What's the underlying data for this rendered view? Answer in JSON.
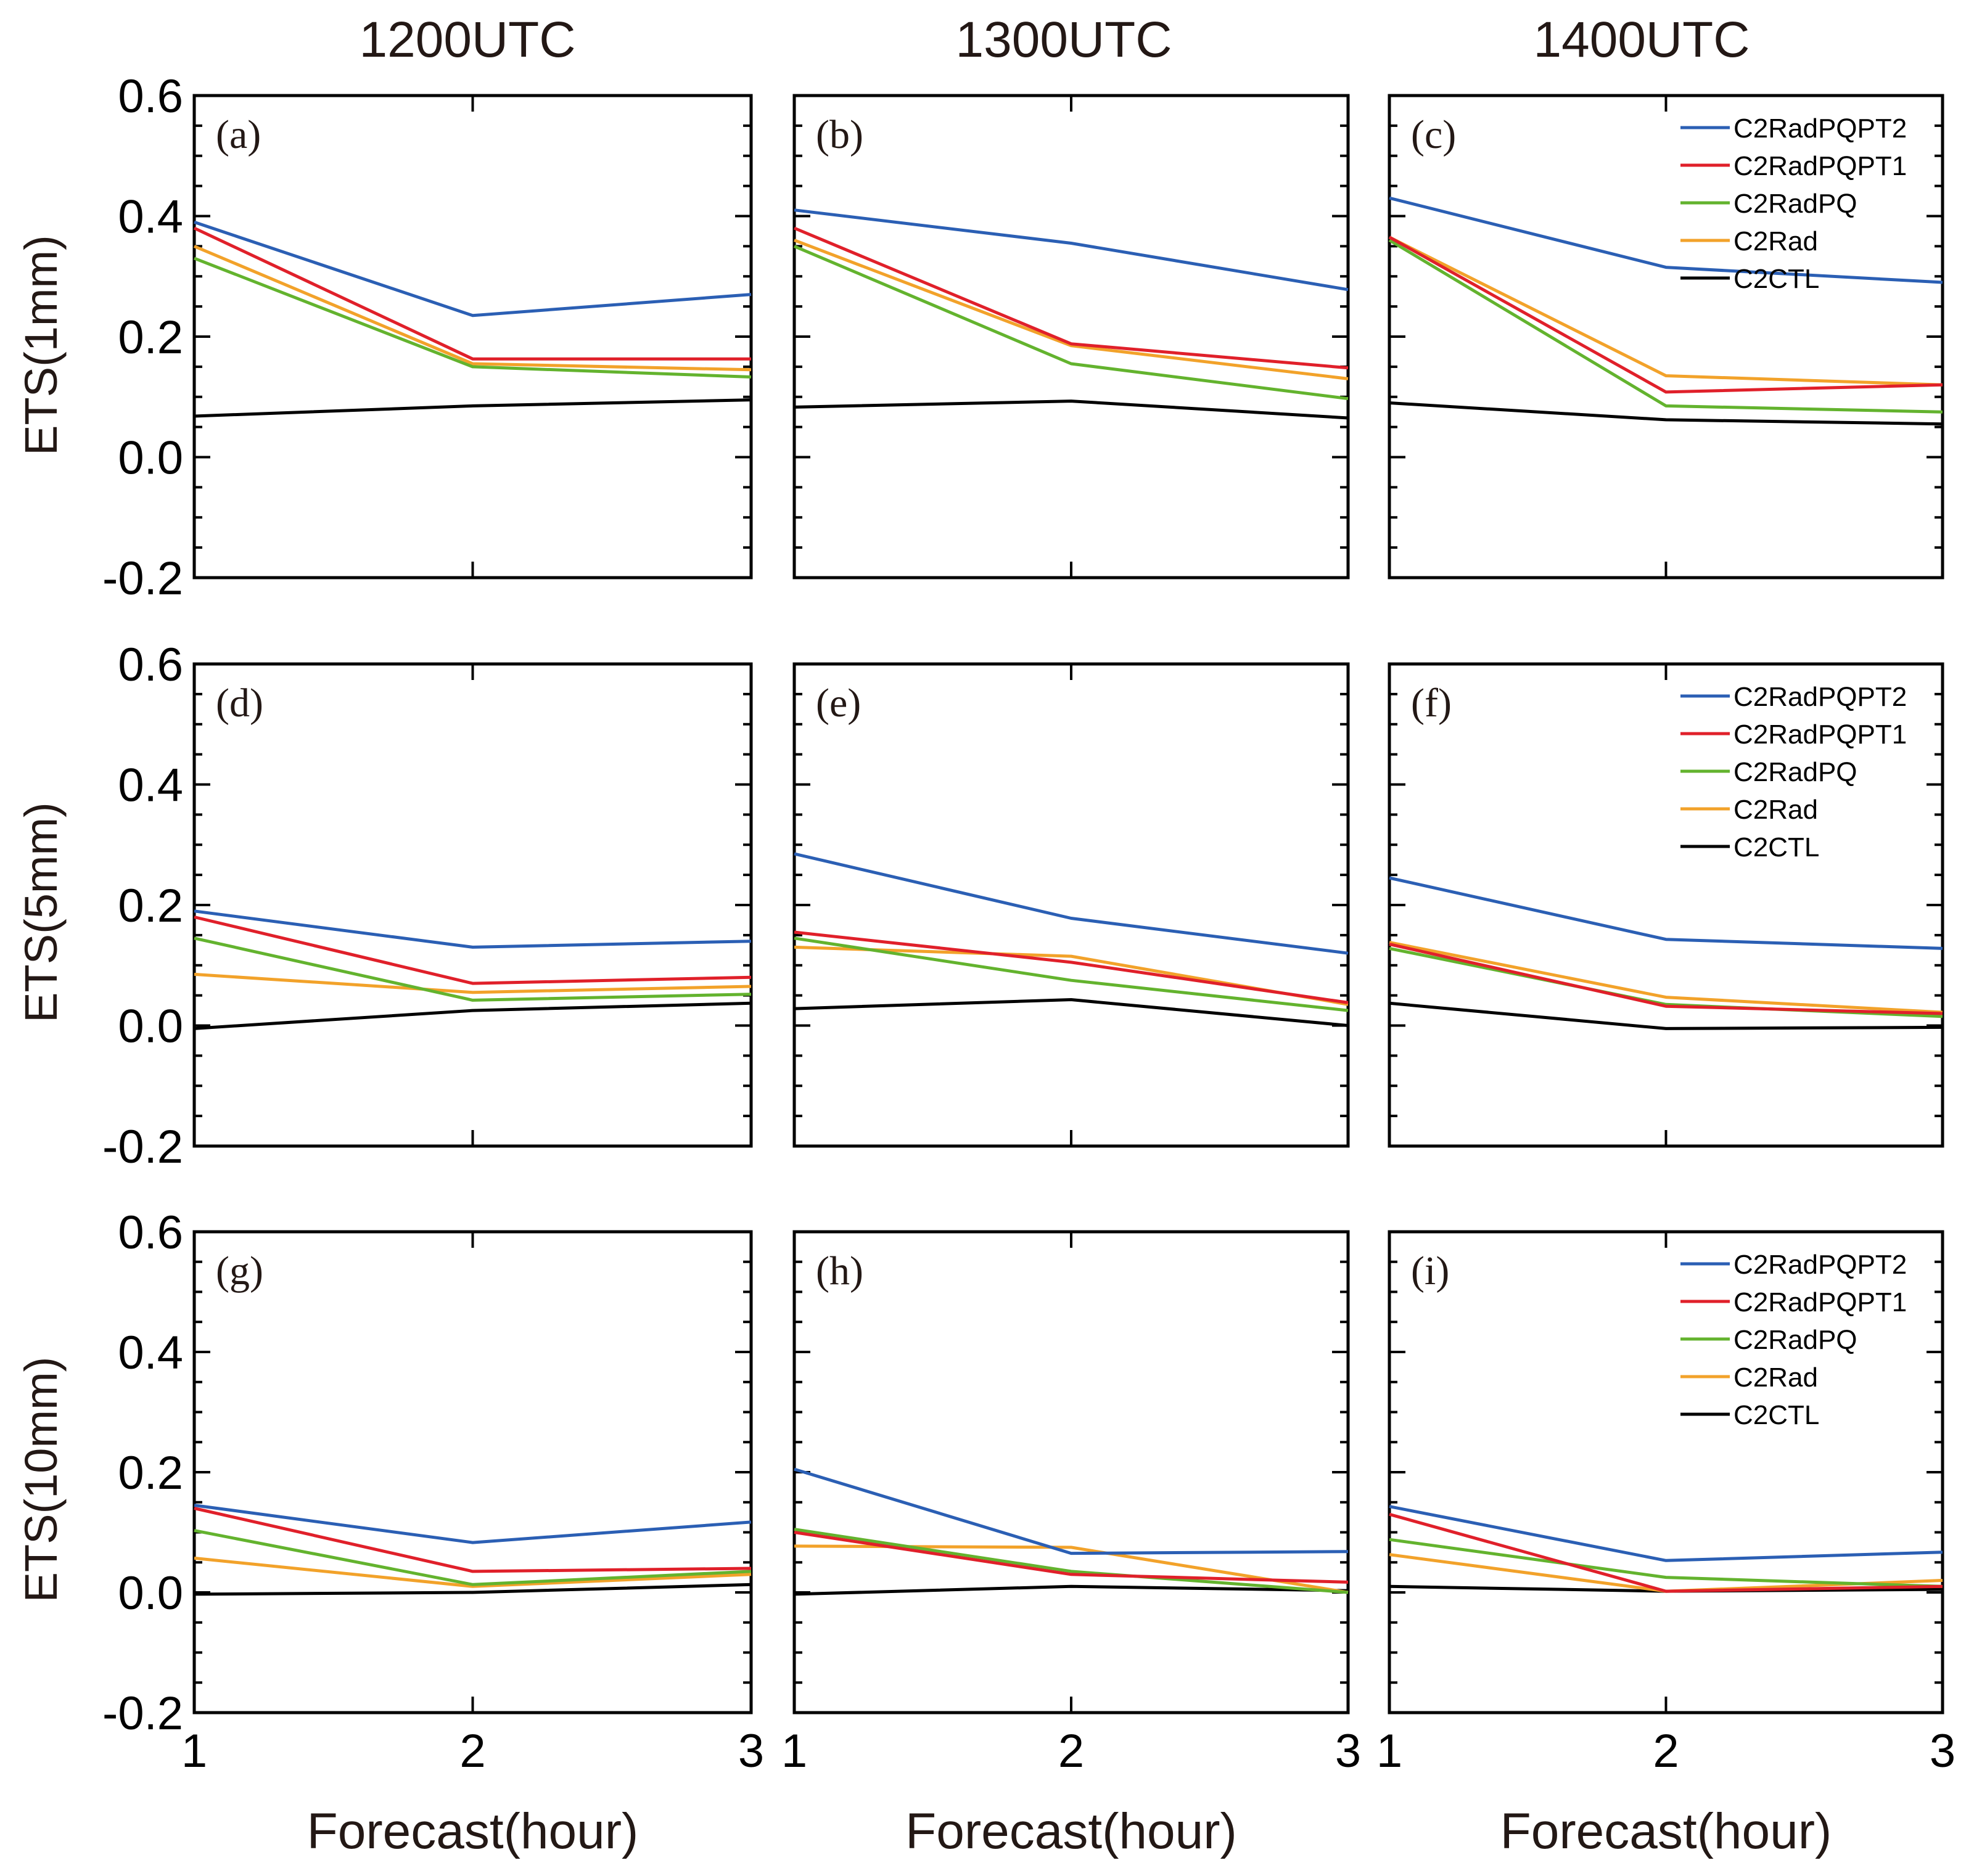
{
  "colors": {
    "C2RadPQPT2": "#2b5fb4",
    "C2RadPQPT1": "#e0202a",
    "C2RadPQ": "#63b32e",
    "C2Rad": "#f2a22a",
    "C2CTL": "#000000"
  },
  "column_titles": [
    "1200UTC",
    "1300UTC",
    "1400UTC"
  ],
  "row_ylabels": [
    "ETS(1mm)",
    "ETS(5mm)",
    "ETS(10mm)"
  ],
  "xlabel": "Forecast(hour)",
  "legend": [
    "C2RadPQPT2",
    "C2RadPQPT1",
    "C2RadPQ",
    "C2Rad",
    "C2CTL"
  ],
  "chart_data": [
    {
      "type": "line",
      "label": "(a)",
      "title": "1200UTC",
      "ylabel": "ETS(1mm)",
      "xlabel": "",
      "x": [
        1,
        2,
        3
      ],
      "ylim": [
        -0.2,
        0.6
      ],
      "yticks": [
        "0.6",
        "0.4",
        "0.2",
        "0.0",
        "-0.2"
      ],
      "xticks": [],
      "legend": false,
      "series": [
        {
          "name": "C2RadPQPT2",
          "values": [
            0.39,
            0.235,
            0.27
          ]
        },
        {
          "name": "C2RadPQPT1",
          "values": [
            0.38,
            0.163,
            0.163
          ]
        },
        {
          "name": "C2RadPQ",
          "values": [
            0.33,
            0.15,
            0.133
          ]
        },
        {
          "name": "C2Rad",
          "values": [
            0.35,
            0.155,
            0.145
          ]
        },
        {
          "name": "C2CTL",
          "values": [
            0.068,
            0.085,
            0.095
          ]
        }
      ]
    },
    {
      "type": "line",
      "label": "(b)",
      "title": "1300UTC",
      "ylabel": "",
      "xlabel": "",
      "x": [
        1,
        2,
        3
      ],
      "ylim": [
        -0.2,
        0.6
      ],
      "yticks": [],
      "xticks": [],
      "legend": false,
      "series": [
        {
          "name": "C2RadPQPT2",
          "values": [
            0.41,
            0.355,
            0.278
          ]
        },
        {
          "name": "C2RadPQPT1",
          "values": [
            0.38,
            0.188,
            0.148
          ]
        },
        {
          "name": "C2RadPQ",
          "values": [
            0.35,
            0.155,
            0.097
          ]
        },
        {
          "name": "C2Rad",
          "values": [
            0.36,
            0.185,
            0.13
          ]
        },
        {
          "name": "C2CTL",
          "values": [
            0.083,
            0.093,
            0.065
          ]
        }
      ]
    },
    {
      "type": "line",
      "label": "(c)",
      "title": "1400UTC",
      "ylabel": "",
      "xlabel": "",
      "x": [
        1,
        2,
        3
      ],
      "ylim": [
        -0.2,
        0.6
      ],
      "yticks": [],
      "xticks": [],
      "legend": true,
      "series": [
        {
          "name": "C2RadPQPT2",
          "values": [
            0.43,
            0.315,
            0.29
          ]
        },
        {
          "name": "C2RadPQPT1",
          "values": [
            0.365,
            0.108,
            0.12
          ]
        },
        {
          "name": "C2RadPQ",
          "values": [
            0.36,
            0.085,
            0.075
          ]
        },
        {
          "name": "C2Rad",
          "values": [
            0.365,
            0.135,
            0.12
          ]
        },
        {
          "name": "C2CTL",
          "values": [
            0.09,
            0.062,
            0.055
          ]
        }
      ]
    },
    {
      "type": "line",
      "label": "(d)",
      "title": "",
      "ylabel": "ETS(5mm)",
      "xlabel": "",
      "x": [
        1,
        2,
        3
      ],
      "ylim": [
        -0.2,
        0.6
      ],
      "yticks": [
        "0.6",
        "0.4",
        "0.2",
        "0.0",
        "-0.2"
      ],
      "xticks": [],
      "legend": false,
      "series": [
        {
          "name": "C2RadPQPT2",
          "values": [
            0.19,
            0.13,
            0.14
          ]
        },
        {
          "name": "C2RadPQPT1",
          "values": [
            0.18,
            0.07,
            0.08
          ]
        },
        {
          "name": "C2RadPQ",
          "values": [
            0.145,
            0.042,
            0.052
          ]
        },
        {
          "name": "C2Rad",
          "values": [
            0.085,
            0.055,
            0.065
          ]
        },
        {
          "name": "C2CTL",
          "values": [
            -0.005,
            0.025,
            0.037
          ]
        }
      ]
    },
    {
      "type": "line",
      "label": "(e)",
      "title": "",
      "ylabel": "",
      "xlabel": "",
      "x": [
        1,
        2,
        3
      ],
      "ylim": [
        -0.2,
        0.6
      ],
      "yticks": [],
      "xticks": [],
      "legend": false,
      "series": [
        {
          "name": "C2RadPQPT2",
          "values": [
            0.285,
            0.178,
            0.12
          ]
        },
        {
          "name": "C2RadPQPT1",
          "values": [
            0.155,
            0.105,
            0.038
          ]
        },
        {
          "name": "C2RadPQ",
          "values": [
            0.145,
            0.075,
            0.025
          ]
        },
        {
          "name": "C2Rad",
          "values": [
            0.13,
            0.115,
            0.035
          ]
        },
        {
          "name": "C2CTL",
          "values": [
            0.028,
            0.043,
            0.0
          ]
        }
      ]
    },
    {
      "type": "line",
      "label": "(f)",
      "title": "",
      "ylabel": "",
      "xlabel": "",
      "x": [
        1,
        2,
        3
      ],
      "ylim": [
        -0.2,
        0.6
      ],
      "yticks": [],
      "xticks": [],
      "legend": true,
      "series": [
        {
          "name": "C2RadPQPT2",
          "values": [
            0.245,
            0.143,
            0.128
          ]
        },
        {
          "name": "C2RadPQPT1",
          "values": [
            0.135,
            0.032,
            0.02
          ]
        },
        {
          "name": "C2RadPQ",
          "values": [
            0.128,
            0.035,
            0.015
          ]
        },
        {
          "name": "C2Rad",
          "values": [
            0.138,
            0.047,
            0.022
          ]
        },
        {
          "name": "C2CTL",
          "values": [
            0.037,
            -0.005,
            -0.003
          ]
        }
      ]
    },
    {
      "type": "line",
      "label": "(g)",
      "title": "",
      "ylabel": "ETS(10mm)",
      "xlabel": "Forecast(hour)",
      "x": [
        1,
        2,
        3
      ],
      "ylim": [
        -0.2,
        0.6
      ],
      "yticks": [
        "0.6",
        "0.4",
        "0.2",
        "0.0",
        "-0.2"
      ],
      "xticks": [
        "1",
        "2",
        "3"
      ],
      "legend": false,
      "series": [
        {
          "name": "C2RadPQPT2",
          "values": [
            0.145,
            0.083,
            0.117
          ]
        },
        {
          "name": "C2RadPQPT1",
          "values": [
            0.14,
            0.035,
            0.04
          ]
        },
        {
          "name": "C2RadPQ",
          "values": [
            0.103,
            0.013,
            0.035
          ]
        },
        {
          "name": "C2Rad",
          "values": [
            0.057,
            0.01,
            0.03
          ]
        },
        {
          "name": "C2CTL",
          "values": [
            -0.003,
            0.0,
            0.013
          ]
        }
      ]
    },
    {
      "type": "line",
      "label": "(h)",
      "title": "",
      "ylabel": "",
      "xlabel": "Forecast(hour)",
      "x": [
        1,
        2,
        3
      ],
      "ylim": [
        -0.2,
        0.6
      ],
      "yticks": [],
      "xticks": [
        "1",
        "2",
        "3"
      ],
      "legend": false,
      "series": [
        {
          "name": "C2RadPQPT2",
          "values": [
            0.205,
            0.065,
            0.068
          ]
        },
        {
          "name": "C2RadPQPT1",
          "values": [
            0.1,
            0.03,
            0.017
          ]
        },
        {
          "name": "C2RadPQ",
          "values": [
            0.105,
            0.035,
            0.0
          ]
        },
        {
          "name": "C2Rad",
          "values": [
            0.077,
            0.075,
            0.0
          ]
        },
        {
          "name": "C2CTL",
          "values": [
            -0.003,
            0.01,
            0.003
          ]
        }
      ]
    },
    {
      "type": "line",
      "label": "(i)",
      "title": "",
      "ylabel": "",
      "xlabel": "Forecast(hour)",
      "x": [
        1,
        2,
        3
      ],
      "ylim": [
        -0.2,
        0.6
      ],
      "yticks": [],
      "xticks": [
        "1",
        "2",
        "3"
      ],
      "legend": true,
      "series": [
        {
          "name": "C2RadPQPT2",
          "values": [
            0.143,
            0.053,
            0.067
          ]
        },
        {
          "name": "C2RadPQPT1",
          "values": [
            0.13,
            0.002,
            0.01
          ]
        },
        {
          "name": "C2RadPQ",
          "values": [
            0.088,
            0.025,
            0.01
          ]
        },
        {
          "name": "C2Rad",
          "values": [
            0.063,
            0.002,
            0.02
          ]
        },
        {
          "name": "C2CTL",
          "values": [
            0.01,
            0.002,
            0.005
          ]
        }
      ]
    }
  ]
}
